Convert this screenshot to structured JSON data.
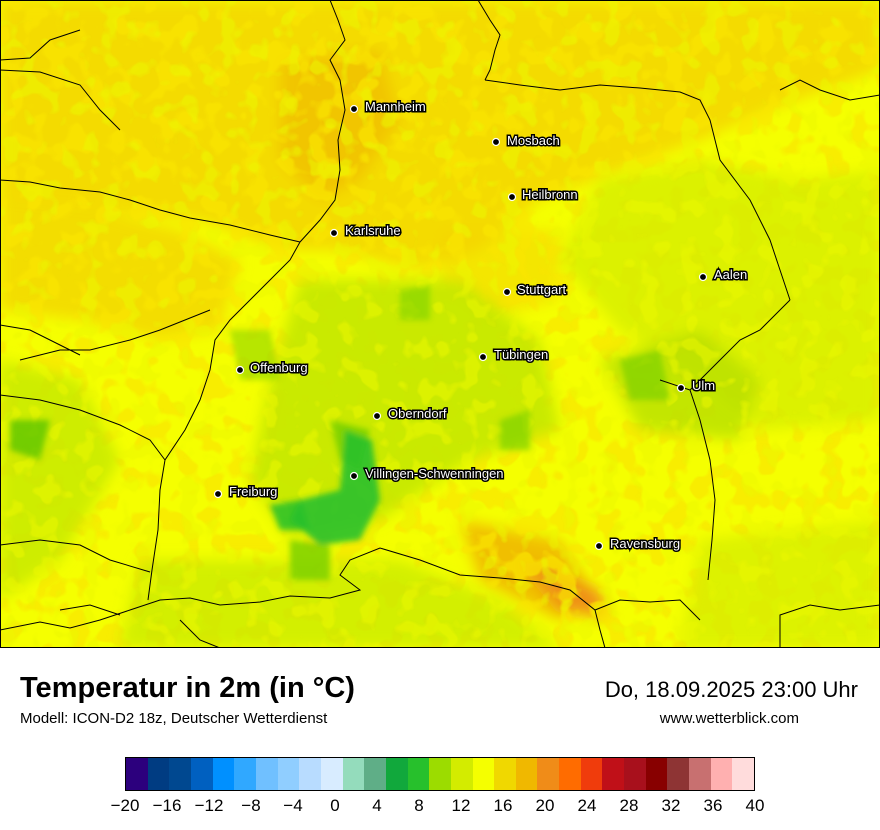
{
  "map": {
    "cities": [
      {
        "name": "Mannheim",
        "id": "mannheim"
      },
      {
        "name": "Mosbach",
        "id": "mosbach"
      },
      {
        "name": "Heilbronn",
        "id": "heilbronn"
      },
      {
        "name": "Karlsruhe",
        "id": "karlsruhe"
      },
      {
        "name": "Aalen",
        "id": "aalen"
      },
      {
        "name": "Stuttgart",
        "id": "stuttgart"
      },
      {
        "name": "Tübingen",
        "id": "tuebingen"
      },
      {
        "name": "Offenburg",
        "id": "offenburg"
      },
      {
        "name": "Ulm",
        "id": "ulm"
      },
      {
        "name": "Oberndorf",
        "id": "oberndorf"
      },
      {
        "name": "Villingen-Schwenningen",
        "id": "villingen-schwenningen"
      },
      {
        "name": "Freiburg",
        "id": "freiburg"
      },
      {
        "name": "Ravensburg",
        "id": "ravensburg"
      }
    ]
  },
  "footer": {
    "title": "Temperatur in 2m (in °C)",
    "model": "Modell: ICON-D2 18z, Deutscher Wetterdienst",
    "datetime": "Do, 18.09.2025 23:00 Uhr",
    "website": "www.wetterblick.com"
  },
  "legend": {
    "colors": [
      "#2c007d",
      "#003c82",
      "#004890",
      "#0060c0",
      "#0090ff",
      "#30a8ff",
      "#70c0ff",
      "#90ceff",
      "#b8dcff",
      "#d8ecff",
      "#94dcbc",
      "#5fae87",
      "#11a83c",
      "#27c02c",
      "#9cdc00",
      "#d3ec00",
      "#f5ff00",
      "#f0d800",
      "#f0b800",
      "#f08c18",
      "#ff6c00",
      "#f03c0c",
      "#c01018",
      "#a8101c",
      "#880000",
      "#8e3434",
      "#c87070",
      "#ffb0b0",
      "#ffdcdc"
    ],
    "ticks": [
      "−20",
      "−16",
      "−12",
      "−8",
      "−4",
      "0",
      "4",
      "8",
      "12",
      "16",
      "20",
      "24",
      "28",
      "32",
      "36",
      "40"
    ],
    "min": -20,
    "max": 40
  }
}
